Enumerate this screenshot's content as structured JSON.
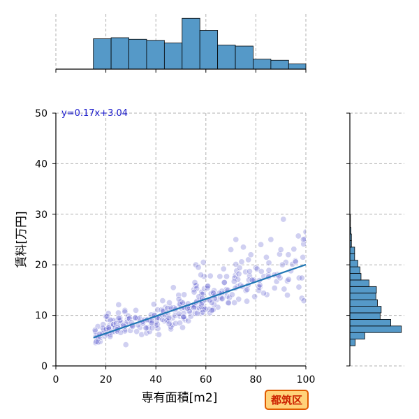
{
  "chart_data": {
    "type": "scatter",
    "xlabel": "専有面積[m2]",
    "ylabel": "賃料[万円]",
    "xlim": [
      0,
      100
    ],
    "ylim": [
      0,
      50
    ],
    "xticks": [
      "0",
      "20",
      "40",
      "60",
      "80",
      "100"
    ],
    "yticks": [
      "0",
      "10",
      "20",
      "30",
      "40",
      "50"
    ],
    "grid": true,
    "regression": {
      "label": "y=0.17x+3.04",
      "slope": 0.17,
      "intercept": 3.04,
      "x_range": [
        15,
        100
      ]
    },
    "badge": "都筑区",
    "colors": {
      "points": "#5555cc",
      "line": "#1f77b4",
      "hist": "#5599c8",
      "equation": "#1a1acc",
      "badge_bg": "#ffd27a",
      "badge_border": "#e05a00",
      "badge_text": "#cc2200"
    },
    "x_histogram": {
      "bin_edges": [
        15,
        22.1,
        29.2,
        36.3,
        43.4,
        50.5,
        57.6,
        64.7,
        71.8,
        78.9,
        86,
        93.1,
        100
      ],
      "heights": [
        0.58,
        0.6,
        0.57,
        0.55,
        0.5,
        0.97,
        0.74,
        0.46,
        0.44,
        0.19,
        0.17,
        0.1
      ]
    },
    "y_histogram": {
      "bin_edges": [
        4,
        5.3,
        6.6,
        7.9,
        9.2,
        10.5,
        11.8,
        13.1,
        14.4,
        15.7,
        17,
        18.3,
        19.6,
        20.9,
        22.2,
        23.5,
        24.8,
        26.1,
        27.4,
        28.7,
        30
      ],
      "widths": [
        0.1,
        0.28,
        0.97,
        0.77,
        0.57,
        0.59,
        0.52,
        0.49,
        0.5,
        0.36,
        0.21,
        0.19,
        0.15,
        0.09,
        0.09,
        0.03,
        0.03,
        0.02,
        0.01,
        0.01
      ]
    },
    "points": [
      [
        17,
        6.1
      ],
      [
        16.8,
        7.8
      ],
      [
        15.9,
        4.6
      ],
      [
        16.3,
        5.6
      ],
      [
        17.7,
        4.8
      ],
      [
        17.8,
        5.6
      ],
      [
        16.1,
        6.0
      ],
      [
        18.9,
        8.2
      ],
      [
        17.6,
        5.9
      ],
      [
        19.5,
        5.9
      ],
      [
        19.2,
        6.4
      ],
      [
        15.8,
        6.8
      ],
      [
        16.9,
        5.4
      ],
      [
        18.6,
        6.5
      ],
      [
        19.2,
        7.1
      ],
      [
        17.5,
        6.3
      ],
      [
        16.9,
        4.7
      ],
      [
        15.7,
        7.1
      ],
      [
        16.2,
        4.8
      ],
      [
        18.8,
        7.5
      ],
      [
        23.5,
        9.0
      ],
      [
        20.9,
        6.5
      ],
      [
        20.2,
        7.3
      ],
      [
        21.8,
        6.2
      ],
      [
        20.0,
        7.2
      ],
      [
        21.5,
        8.0
      ],
      [
        22.6,
        9.0
      ],
      [
        22.2,
        6.6
      ],
      [
        21.3,
        7.5
      ],
      [
        22.6,
        7.7
      ],
      [
        20.6,
        9.2
      ],
      [
        21.2,
        7.2
      ],
      [
        20.3,
        6.3
      ],
      [
        21.1,
        7.6
      ],
      [
        21.8,
        9.1
      ],
      [
        21.7,
        5.8
      ],
      [
        23.5,
        6.8
      ],
      [
        22.8,
        8.2
      ],
      [
        23.1,
        8.2
      ],
      [
        23.9,
        7.6
      ],
      [
        20,
        9.8
      ],
      [
        21,
        10.4
      ],
      [
        20.4,
        9.8
      ],
      [
        26.3,
        8.6
      ],
      [
        24.7,
        7.4
      ],
      [
        28.6,
        9.2
      ],
      [
        25.8,
        8.1
      ],
      [
        25.8,
        8.9
      ],
      [
        24.7,
        6.8
      ],
      [
        28.1,
        8.2
      ],
      [
        28.5,
        8.7
      ],
      [
        27.6,
        7.2
      ],
      [
        27.6,
        11.0
      ],
      [
        27.6,
        6.9
      ],
      [
        24.1,
        8.4
      ],
      [
        25.9,
        6.6
      ],
      [
        27.6,
        10.7
      ],
      [
        24.5,
        6.9
      ],
      [
        27.5,
        7.8
      ],
      [
        25.1,
        12.1
      ],
      [
        25.6,
        9.0
      ],
      [
        24.7,
        7.6
      ],
      [
        28.9,
        9.9
      ],
      [
        25.6,
        9.5
      ],
      [
        25.0,
        10.5
      ],
      [
        24.6,
        7.2
      ],
      [
        25.1,
        9.5
      ],
      [
        29.3,
        9.3
      ],
      [
        29.5,
        9.4
      ],
      [
        29.8,
        7.0
      ],
      [
        27.0,
        8.0
      ],
      [
        30.1,
        8.0
      ],
      [
        32,
        11
      ],
      [
        30.6,
        8.0
      ],
      [
        32.6,
        9.4
      ],
      [
        31.8,
        9.6
      ],
      [
        33.6,
        7.6
      ],
      [
        32.3,
        6.8
      ],
      [
        32.9,
        8.1
      ],
      [
        30.7,
        7.8
      ],
      [
        30.3,
        8.6
      ],
      [
        34.8,
        8.4
      ],
      [
        34.3,
        6.2
      ],
      [
        34.8,
        8.5
      ],
      [
        34.8,
        8.8
      ],
      [
        33.5,
        9.4
      ],
      [
        31.8,
        9.5
      ],
      [
        28,
        4.2
      ],
      [
        35.4,
        9.1
      ],
      [
        36.3,
        6.5
      ],
      [
        36.7,
        9.2
      ],
      [
        40.6,
        8.2
      ],
      [
        37.5,
        6.8
      ],
      [
        39.7,
        9.6
      ],
      [
        37.0,
        7.6
      ],
      [
        39.4,
        10.2
      ],
      [
        38.5,
        8.5
      ],
      [
        40.7,
        11.1
      ],
      [
        40.2,
        8.7
      ],
      [
        36.4,
        7.5
      ],
      [
        36.5,
        9.1
      ],
      [
        40.8,
        7.4
      ],
      [
        36.0,
        7.5
      ],
      [
        40.1,
        8.0
      ],
      [
        37.6,
        9.0
      ],
      [
        38.4,
        8.9
      ],
      [
        38.3,
        8.5
      ],
      [
        39.2,
        12.2
      ],
      [
        40.6,
        9.6
      ],
      [
        41.2,
        6.2
      ],
      [
        38.5,
        7.5
      ],
      [
        38.1,
        10.1
      ],
      [
        40.5,
        9.5
      ],
      [
        39.4,
        10.0
      ],
      [
        41.2,
        9.5
      ],
      [
        43.9,
        11.6
      ],
      [
        42.2,
        11.1
      ],
      [
        43.4,
        8.9
      ],
      [
        42.6,
        9.2
      ],
      [
        42.4,
        10.1
      ],
      [
        44.6,
        9.6
      ],
      [
        42.8,
        11.0
      ],
      [
        43.6,
        10.1
      ],
      [
        46.0,
        7.3
      ],
      [
        44.8,
        10.5
      ],
      [
        42.7,
        12.9
      ],
      [
        47.6,
        11.0
      ],
      [
        45.2,
        8.8
      ],
      [
        46.7,
        9.5
      ],
      [
        46.0,
        7.7
      ],
      [
        43.0,
        10.8
      ],
      [
        46.5,
        8.1
      ],
      [
        47.3,
        11.5
      ],
      [
        47.9,
        8.4
      ],
      [
        44.6,
        11.4
      ],
      [
        47.7,
        10.0
      ],
      [
        44.4,
        9.0
      ],
      [
        46.1,
        11.2
      ],
      [
        45.9,
        11.6
      ],
      [
        47.8,
        11.3
      ],
      [
        45.3,
        8.3
      ],
      [
        45.4,
        12.5
      ],
      [
        45.2,
        9.5
      ],
      [
        47,
        15.5
      ],
      [
        50.3,
        11.4
      ],
      [
        51.6,
        11.4
      ],
      [
        49.7,
        9.8
      ],
      [
        53.3,
        11.7
      ],
      [
        51.7,
        9.1
      ],
      [
        51.2,
        12.2
      ],
      [
        51.1,
        10.4
      ],
      [
        49.9,
        12.2
      ],
      [
        49.2,
        10.3
      ],
      [
        51.0,
        11.6
      ],
      [
        51.4,
        9.3
      ],
      [
        50.0,
        12.7
      ],
      [
        53.9,
        11.8
      ],
      [
        53.7,
        10.8
      ],
      [
        53.5,
        11.5
      ],
      [
        51.3,
        14.1
      ],
      [
        53.0,
        8.9
      ],
      [
        51.0,
        9.6
      ],
      [
        49.5,
        12.2
      ],
      [
        53.4,
        10.8
      ],
      [
        50.7,
        12.5
      ],
      [
        49.6,
        8.5
      ],
      [
        52.6,
        11.4
      ],
      [
        54.0,
        9.8
      ],
      [
        49.1,
        14.0
      ],
      [
        50.7,
        7.6
      ],
      [
        52.9,
        12.3
      ],
      [
        49.2,
        13.2
      ],
      [
        51.1,
        9.7
      ],
      [
        54.9,
        11.8
      ],
      [
        58.1,
        10.4
      ],
      [
        57.6,
        13.0
      ],
      [
        56.6,
        11.4
      ],
      [
        58.1,
        12.9
      ],
      [
        57.3,
        11.5
      ],
      [
        55.2,
        15.1
      ],
      [
        55.7,
        10.4
      ],
      [
        59.5,
        11.2
      ],
      [
        55.2,
        12.1
      ],
      [
        58.3,
        14.6
      ],
      [
        58.6,
        11.1
      ],
      [
        55.8,
        15.9
      ],
      [
        59.0,
        14.3
      ],
      [
        59.3,
        11.5
      ],
      [
        55.4,
        11.8
      ],
      [
        56.2,
        15.9
      ],
      [
        58.2,
        11.7
      ],
      [
        59.6,
        11.2
      ],
      [
        56.0,
        12.5
      ],
      [
        58.8,
        10.6
      ],
      [
        56.4,
        12.8
      ],
      [
        56.3,
        15.3
      ],
      [
        55.2,
        11.5
      ],
      [
        56.5,
        10.4
      ],
      [
        58.4,
        14.2
      ],
      [
        57.2,
        13.7
      ],
      [
        55.6,
        16.5
      ],
      [
        59.3,
        17.7
      ],
      [
        58.7,
        12.5
      ],
      [
        59.4,
        15.3
      ],
      [
        59.3,
        13.0
      ],
      [
        55.3,
        14.6
      ],
      [
        58.2,
        12.2
      ],
      [
        58.6,
        13.4
      ],
      [
        56,
        20
      ],
      [
        58,
        18
      ],
      [
        57,
        19.5
      ],
      [
        59,
        20.5
      ],
      [
        61.6,
        13.1
      ],
      [
        63.3,
        14.9
      ],
      [
        60.7,
        15.7
      ],
      [
        62.1,
        14.3
      ],
      [
        62.4,
        11.1
      ],
      [
        61.8,
        17.8
      ],
      [
        61.3,
        11.2
      ],
      [
        63.1,
        14.3
      ],
      [
        62.9,
        14.5
      ],
      [
        64.8,
        11.6
      ],
      [
        63.3,
        12.1
      ],
      [
        64.3,
        13.1
      ],
      [
        61.6,
        10.5
      ],
      [
        63.6,
        13.9
      ],
      [
        62.9,
        11.1
      ],
      [
        60.6,
        15.4
      ],
      [
        61.5,
        13.0
      ],
      [
        62.4,
        11.0
      ],
      [
        63.5,
        13.3
      ],
      [
        62.4,
        12.5
      ],
      [
        60.8,
        15.8
      ],
      [
        65.8,
        13.6
      ],
      [
        68.5,
        13.8
      ],
      [
        67.4,
        16.5
      ],
      [
        67.1,
        19.2
      ],
      [
        68.3,
        17.7
      ],
      [
        67.8,
        14.6
      ],
      [
        67.4,
        16.5
      ],
      [
        66.2,
        13.3
      ],
      [
        68.2,
        15.1
      ],
      [
        66.6,
        13.3
      ],
      [
        69.4,
        13.5
      ],
      [
        65.6,
        17.7
      ],
      [
        66.4,
        14.8
      ],
      [
        69.1,
        12.4
      ],
      [
        66.4,
        14.4
      ],
      [
        68.8,
        15.0
      ],
      [
        65.4,
        14.4
      ],
      [
        69.0,
        12.5
      ],
      [
        72.6,
        15.7
      ],
      [
        70.5,
        14.1
      ],
      [
        71.8,
        15.4
      ],
      [
        71.8,
        17.9
      ],
      [
        73.8,
        16.0
      ],
      [
        72.0,
        20.1
      ],
      [
        71.5,
        17.4
      ],
      [
        73.1,
        13.2
      ],
      [
        72.3,
        18.8
      ],
      [
        73.5,
        19.4
      ],
      [
        74.3,
        20.6
      ],
      [
        71.4,
        12.5
      ],
      [
        72.8,
        17.1
      ],
      [
        71.3,
        16.7
      ],
      [
        74.6,
        15.7
      ],
      [
        73.2,
        18.2
      ],
      [
        72,
        25
      ],
      [
        75,
        23.5
      ],
      [
        70,
        23
      ],
      [
        77.5,
        17.8
      ],
      [
        76.0,
        14.9
      ],
      [
        78.8,
        16.8
      ],
      [
        76.9,
        16.0
      ],
      [
        75.9,
        18.6
      ],
      [
        77.2,
        17.0
      ],
      [
        79.2,
        17.0
      ],
      [
        76.5,
        15.1
      ],
      [
        76.4,
        12.8
      ],
      [
        77.5,
        18.7
      ],
      [
        78.5,
        17.0
      ],
      [
        79.5,
        13.7
      ],
      [
        77,
        21
      ],
      [
        78,
        22
      ],
      [
        80.0,
        19.4
      ],
      [
        81.6,
        15.6
      ],
      [
        80.5,
        19.2
      ],
      [
        81.2,
        15.6
      ],
      [
        81.6,
        16.0
      ],
      [
        81.2,
        14.9
      ],
      [
        83.2,
        17.7
      ],
      [
        81.4,
        16.9
      ],
      [
        84.2,
        21.5
      ],
      [
        84.4,
        14.1
      ],
      [
        82.2,
        18.7
      ],
      [
        83.1,
        14.4
      ],
      [
        82,
        24
      ],
      [
        85,
        18
      ],
      [
        88.3,
        16.7
      ],
      [
        85.2,
        18.9
      ],
      [
        89.7,
        17.4
      ],
      [
        87.5,
        15.4
      ],
      [
        85.1,
        17.6
      ],
      [
        89.5,
        22.1
      ],
      [
        88.6,
        18.1
      ],
      [
        85.2,
        20.4
      ],
      [
        87.4,
        18.0
      ],
      [
        89.1,
        17.8
      ],
      [
        86,
        25
      ],
      [
        90,
        23
      ],
      [
        92.0,
        20.5
      ],
      [
        91.3,
        15.2
      ],
      [
        94.0,
        18.8
      ],
      [
        92.6,
        14.0
      ],
      [
        92.6,
        16.8
      ],
      [
        93.1,
        17.1
      ],
      [
        94.6,
        20.1
      ],
      [
        90.6,
        20.0
      ],
      [
        91,
        29
      ],
      [
        93,
        22
      ],
      [
        97.3,
        17.4
      ],
      [
        95.8,
        20.8
      ],
      [
        97.2,
        15.6
      ],
      [
        98.8,
        21.5
      ],
      [
        99.6,
        25.1
      ],
      [
        95.2,
        23.1
      ],
      [
        98.4,
        13.4
      ],
      [
        99.2,
        12.9
      ],
      [
        98.4,
        17.4
      ],
      [
        97.0,
        25.7
      ],
      [
        99.1,
        24.1
      ],
      [
        95.9,
        20.6
      ],
      [
        100,
        26.5
      ],
      [
        99,
        25
      ]
    ]
  }
}
